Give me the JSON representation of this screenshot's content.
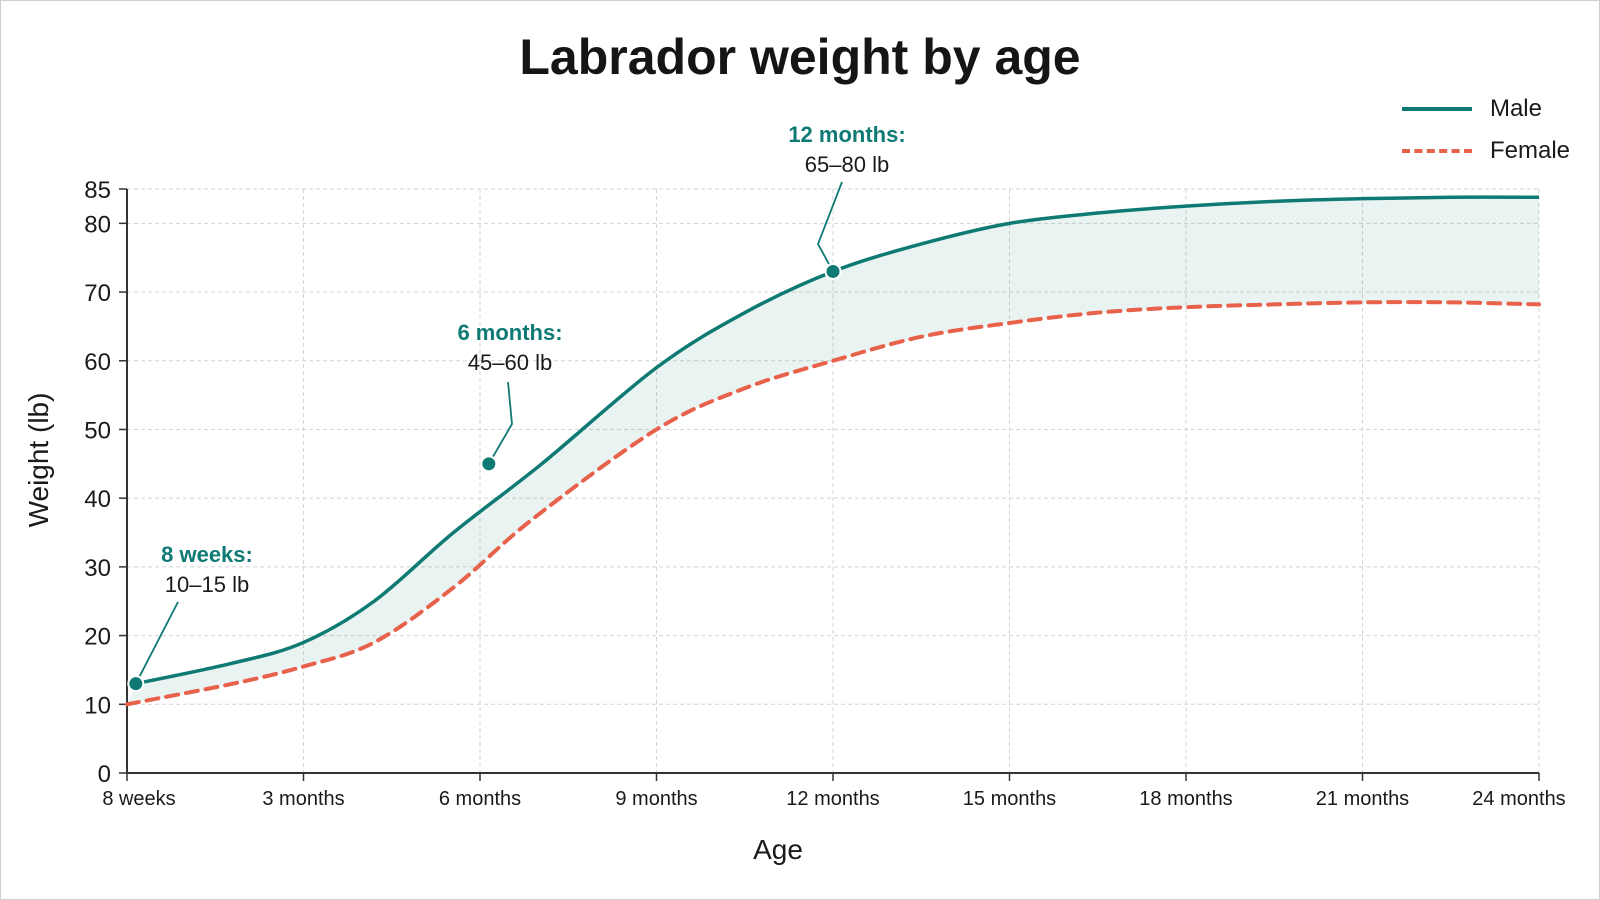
{
  "chart_data": {
    "type": "line",
    "title": "Labrador weight by age",
    "xlabel": "Age",
    "ylabel": "Weight (lb)",
    "categories": [
      "8 weeks",
      "3 months",
      "6 months",
      "9 months",
      "12 months",
      "15 months",
      "18 months",
      "21 months",
      "24 months"
    ],
    "y_ticks": [
      0,
      10,
      20,
      30,
      40,
      50,
      60,
      70,
      80,
      85
    ],
    "ylim": [
      0,
      85
    ],
    "grid": true,
    "legend_position": "top-right",
    "series": [
      {
        "name": "Male",
        "color": "#0e7a73",
        "line_style": "solid",
        "x": [
          0.05,
          0.6,
          1.0,
          1.4,
          1.85,
          2.35,
          3.0,
          3.5,
          4.0,
          4.5,
          5.0,
          5.5,
          6.0,
          6.5,
          7.0,
          7.5,
          8.0
        ],
        "values": [
          13,
          16,
          19,
          25,
          35,
          45,
          59,
          67,
          73,
          77,
          80,
          81.5,
          82.5,
          83.2,
          83.6,
          83.8,
          83.8
        ]
      },
      {
        "name": "Female",
        "color": "#e8614a",
        "line_style": "dashed",
        "x": [
          0.0,
          0.6,
          1.0,
          1.4,
          1.85,
          2.3,
          3.0,
          3.5,
          4.0,
          4.5,
          5.0,
          5.5,
          6.0,
          6.5,
          7.0,
          7.5,
          8.0
        ],
        "values": [
          10,
          13,
          15.5,
          19,
          27,
          37,
          50,
          56,
          60,
          63.5,
          65.5,
          67,
          67.8,
          68.2,
          68.5,
          68.5,
          68.2
        ]
      }
    ],
    "markers": [
      {
        "x": 0.05,
        "y": 13
      },
      {
        "x": 2.05,
        "y": 45
      },
      {
        "x": 4.0,
        "y": 73
      }
    ],
    "annotations": [
      {
        "label": "8 weeks:",
        "value": "10–15 lb"
      },
      {
        "label": "6 months:",
        "value": "45–60 lb"
      },
      {
        "label": "12 months:",
        "value": "65–80 lb"
      }
    ]
  }
}
